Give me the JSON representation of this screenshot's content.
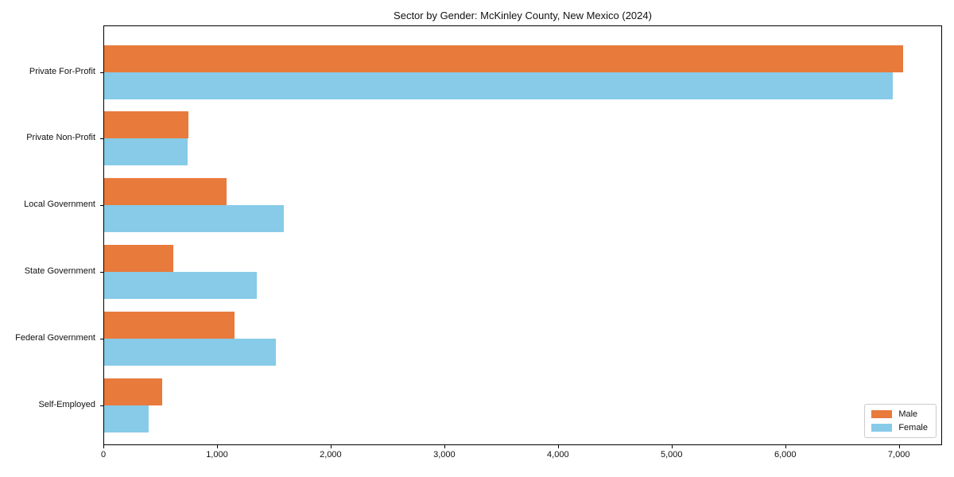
{
  "chart_data": {
    "type": "bar",
    "orientation": "horizontal",
    "title": "Sector by Gender: McKinley County, New Mexico (2024)",
    "categories": [
      "Private For-Profit",
      "Private Non-Profit",
      "Local Government",
      "State Government",
      "Federal Government",
      "Self-Employed"
    ],
    "series": [
      {
        "name": "Male",
        "color": "#E87A3C",
        "values": [
          7030,
          740,
          1075,
          610,
          1145,
          510
        ]
      },
      {
        "name": "Female",
        "color": "#87CBE8",
        "values": [
          6940,
          735,
          1580,
          1340,
          1510,
          390
        ]
      }
    ],
    "xlabel": "",
    "ylabel": "",
    "xlim": [
      0,
      7380
    ],
    "x_ticks": [
      0,
      1000,
      2000,
      3000,
      4000,
      5000,
      6000,
      7000
    ],
    "x_tick_labels": [
      "0",
      "1,000",
      "2,000",
      "3,000",
      "4,000",
      "5,000",
      "6,000",
      "7,000"
    ],
    "legend": {
      "position": "lower right"
    },
    "grid": false
  }
}
